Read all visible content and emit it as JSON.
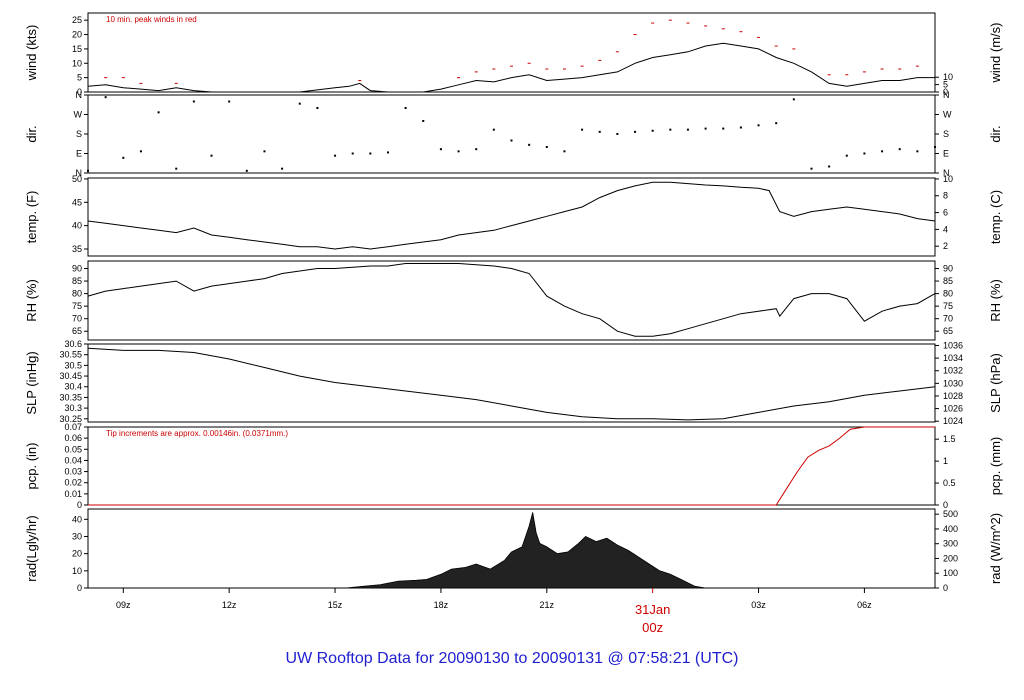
{
  "colors": {
    "axis": "#000000",
    "line": "#000000",
    "peak": "#cc0000",
    "precip": "#cc0000",
    "title": "#2020d0",
    "radiation_fill": "#222222"
  },
  "footer": {
    "title": "UW Rooftop Data for 20090130  to  20090131 @ 07:58:21  (UTC)"
  },
  "chart_data": [
    {
      "type": "line",
      "name": "wind",
      "ylabel": "wind (kts)",
      "ylabel_right": "wind (m/s)",
      "ylim": [
        0,
        27.5
      ],
      "yticks": [
        0,
        5,
        10,
        15,
        20,
        25
      ],
      "yticks_right": [
        0,
        5,
        10
      ],
      "right_factor": 1.944,
      "annotation": "10 min. peak winds in red",
      "series": [
        {
          "x": [
            8.0,
            8.5,
            9.0,
            9.5,
            10.0,
            10.5,
            11.0,
            11.5,
            12.0,
            13.0,
            14.0,
            15.0,
            15.4,
            15.7,
            16.0,
            16.5,
            17.0,
            17.5,
            18.0,
            18.5,
            19.0,
            19.5,
            20.0,
            20.5,
            21.0,
            21.5,
            22.0,
            22.5,
            23.0,
            23.5,
            24.0,
            24.5,
            25.0,
            25.5,
            26.0,
            26.5,
            27.0,
            27.5,
            28.0,
            28.5,
            29.0,
            29.5,
            30.0,
            30.5,
            31.0,
            31.5,
            32.0
          ],
          "values": [
            2,
            2.5,
            1.5,
            1,
            0.5,
            1.5,
            0.5,
            0,
            0,
            0,
            0,
            1.5,
            2,
            3,
            0.5,
            0,
            0,
            0,
            1,
            2.5,
            4,
            3.5,
            5,
            6,
            4,
            4.5,
            5,
            6,
            7,
            10,
            12,
            13,
            14,
            16,
            17,
            16,
            15,
            12,
            10,
            7,
            3,
            2,
            3,
            4,
            4,
            5,
            5
          ]
        },
        {
          "name": "10 min. peak winds",
          "x": [
            8.5,
            9.0,
            9.5,
            10.5,
            15.7,
            18.5,
            19.0,
            19.5,
            20.0,
            20.5,
            21.0,
            21.5,
            22.0,
            22.5,
            23.0,
            23.5,
            24.0,
            24.5,
            25.0,
            25.5,
            26.0,
            26.5,
            27.0,
            27.5,
            28.0,
            29.0,
            29.5,
            30.0,
            30.5,
            31.0,
            31.5
          ],
          "values": [
            5,
            5,
            3,
            3,
            4,
            5,
            7,
            8,
            9,
            10,
            8,
            8,
            9,
            11,
            14,
            20,
            24,
            25,
            24,
            23,
            22,
            21,
            19,
            16,
            15,
            6,
            6,
            7,
            8,
            8,
            9
          ]
        }
      ]
    },
    {
      "type": "scatter",
      "name": "direction",
      "ylabel": "dir.",
      "ylabel_right": "dir.",
      "yticks_labels": [
        "N",
        "E",
        "S",
        "W",
        "N"
      ],
      "ylim": [
        0,
        360
      ],
      "x": [
        8.0,
        8.5,
        9.0,
        9.5,
        10.0,
        10.5,
        11.0,
        11.5,
        12.0,
        12.5,
        13.0,
        13.5,
        14.0,
        14.5,
        15.0,
        15.5,
        16.0,
        16.5,
        17.0,
        17.5,
        18.0,
        18.5,
        19.0,
        19.5,
        20.0,
        20.5,
        21.0,
        21.5,
        22.0,
        22.5,
        23.0,
        23.5,
        24.0,
        24.5,
        25.0,
        25.5,
        26.0,
        26.5,
        27.0,
        27.5,
        28.0,
        28.5,
        29.0,
        29.5,
        30.0,
        30.5,
        31.0,
        31.5,
        32.0
      ],
      "values": [
        10,
        350,
        70,
        100,
        280,
        20,
        330,
        80,
        330,
        10,
        100,
        20,
        320,
        300,
        80,
        90,
        90,
        95,
        300,
        240,
        110,
        100,
        110,
        200,
        150,
        130,
        120,
        100,
        200,
        190,
        180,
        190,
        195,
        200,
        200,
        205,
        205,
        210,
        220,
        230,
        340,
        20,
        30,
        80,
        90,
        100,
        110,
        100,
        120
      ]
    },
    {
      "type": "line",
      "name": "temperature",
      "ylabel": "temp. (F)",
      "ylabel_right": "temp. (C)",
      "ylim": [
        33.5,
        50.2
      ],
      "yticks": [
        35,
        40,
        45,
        50
      ],
      "yticks_right": [
        2,
        4,
        6,
        8,
        10
      ],
      "right_to_left": "F",
      "x": [
        8.0,
        8.5,
        9.0,
        9.5,
        10.0,
        10.5,
        11.0,
        11.5,
        12.0,
        12.5,
        13.0,
        13.5,
        14.0,
        14.5,
        15.0,
        15.5,
        16.0,
        16.5,
        17.0,
        17.5,
        18.0,
        18.5,
        19.0,
        19.5,
        20.0,
        20.5,
        21.0,
        21.5,
        22.0,
        22.5,
        23.0,
        23.5,
        24.0,
        24.5,
        25.0,
        25.5,
        26.0,
        26.5,
        27.0,
        27.3,
        27.6,
        28.0,
        28.5,
        29.0,
        29.5,
        30.0,
        30.5,
        31.0,
        31.5,
        32.0
      ],
      "values": [
        41,
        40.5,
        40,
        39.5,
        39,
        38.5,
        39.5,
        38,
        37.5,
        37,
        36.5,
        36,
        35.5,
        35.5,
        35,
        35.5,
        35,
        35.5,
        36,
        36.5,
        37,
        38,
        38.5,
        39,
        40,
        41,
        42,
        43,
        44,
        46,
        47.5,
        48.5,
        49.3,
        49.3,
        49,
        48.7,
        48.5,
        48.2,
        48,
        47.5,
        43,
        42,
        43,
        43.5,
        44,
        43.5,
        43,
        42.5,
        41.5,
        41
      ]
    },
    {
      "type": "line",
      "name": "relative-humidity",
      "ylabel": "RH (%)",
      "ylabel_right": "RH (%)",
      "ylim": [
        61.5,
        93
      ],
      "yticks": [
        65,
        70,
        75,
        80,
        85,
        90
      ],
      "yticks_right": [
        65,
        70,
        75,
        80,
        85,
        90
      ],
      "x": [
        8.0,
        8.5,
        9.0,
        9.5,
        10.0,
        10.5,
        11.0,
        11.5,
        12.0,
        12.5,
        13.0,
        13.5,
        14.0,
        14.5,
        15.0,
        15.5,
        16.0,
        16.5,
        17.0,
        17.5,
        18.0,
        18.5,
        19.0,
        19.5,
        20.0,
        20.5,
        21.0,
        21.5,
        22.0,
        22.5,
        23.0,
        23.5,
        24.0,
        24.5,
        25.0,
        25.5,
        26.0,
        26.5,
        27.0,
        27.5,
        27.6,
        28.0,
        28.5,
        29.0,
        29.5,
        30.0,
        30.5,
        31.0,
        31.5,
        32.0
      ],
      "values": [
        79,
        81,
        82,
        83,
        84,
        85,
        81,
        83,
        84,
        85,
        86,
        88,
        89,
        90,
        90,
        90.5,
        91,
        91,
        92,
        92,
        92,
        92,
        91.5,
        91,
        90,
        88,
        79,
        75,
        72,
        70,
        65,
        63,
        63,
        64,
        66,
        68,
        70,
        72,
        73,
        74,
        71,
        78,
        80,
        80,
        78,
        69,
        73,
        75,
        76,
        80
      ]
    },
    {
      "type": "line",
      "name": "sea-level-pressure",
      "ylabel": "SLP (inHg)",
      "ylabel_right": "SLP (hPa)",
      "ylim": [
        30.235,
        30.6
      ],
      "yticks": [
        30.25,
        30.3,
        30.35,
        30.4,
        30.45,
        30.5,
        30.55,
        30.6
      ],
      "yticks_right": [
        1024,
        1026,
        1028,
        1030,
        1032,
        1034,
        1036
      ],
      "right_to_left": "hPa",
      "x": [
        8.0,
        9.0,
        10.0,
        11.0,
        12.0,
        13.0,
        14.0,
        15.0,
        16.0,
        17.0,
        18.0,
        19.0,
        20.0,
        21.0,
        22.0,
        23.0,
        24.0,
        25.0,
        26.0,
        27.0,
        28.0,
        29.0,
        30.0,
        31.0,
        32.0
      ],
      "values": [
        30.58,
        30.57,
        30.57,
        30.56,
        30.53,
        30.49,
        30.45,
        30.42,
        30.4,
        30.38,
        30.36,
        30.34,
        30.31,
        30.28,
        30.26,
        30.25,
        30.25,
        30.245,
        30.25,
        30.28,
        30.31,
        30.33,
        30.36,
        30.38,
        30.4
      ]
    },
    {
      "type": "area",
      "name": "precipitation",
      "ylabel": "pcp. (in)",
      "ylabel_right": "pcp. (mm)",
      "ylim": [
        0,
        0.07
      ],
      "yticks": [
        0,
        0.01,
        0.02,
        0.03,
        0.04,
        0.05,
        0.06,
        0.07
      ],
      "yticks_right": [
        0,
        0.5,
        1,
        1.5
      ],
      "right_factor": 25.4,
      "annotation": "Tip increments are approx. 0.00146in. (0.0371mm.)",
      "x": [
        8.0,
        27.5,
        27.8,
        28.1,
        28.4,
        28.7,
        29.0,
        29.3,
        29.6,
        30.0,
        32.0
      ],
      "values": [
        0,
        0,
        0.015,
        0.03,
        0.043,
        0.049,
        0.053,
        0.06,
        0.068,
        0.07,
        0.07
      ]
    },
    {
      "type": "area",
      "name": "solar-radiation",
      "ylabel": "rad(Lgly/hr)",
      "ylabel_right": "rad (W/m^2)",
      "ylim": [
        0,
        46
      ],
      "yticks": [
        0,
        10,
        20,
        30,
        40
      ],
      "yticks_right": [
        0,
        100,
        200,
        300,
        400,
        500
      ],
      "right_factor": 11.63,
      "x": [
        15.3,
        15.8,
        16.3,
        16.8,
        17.3,
        17.6,
        18.0,
        18.3,
        18.7,
        19.0,
        19.4,
        19.8,
        20.0,
        20.3,
        20.5,
        20.6,
        20.7,
        20.8,
        21.0,
        21.3,
        21.6,
        21.9,
        22.1,
        22.4,
        22.7,
        23.0,
        23.3,
        23.6,
        23.9,
        24.2,
        24.5,
        24.8,
        25.2,
        25.5
      ],
      "values": [
        0,
        1,
        2,
        4,
        4.5,
        5,
        8,
        11,
        12,
        14,
        11,
        16,
        21,
        24,
        36,
        44,
        32,
        26,
        24,
        20,
        21,
        26,
        30,
        27,
        29,
        25,
        22,
        18,
        14,
        10,
        8,
        5,
        1,
        0
      ]
    }
  ],
  "x_axis": {
    "xlim": [
      8,
      32
    ],
    "ticks": [
      {
        "x": 9,
        "label": "09z"
      },
      {
        "x": 12,
        "label": "12z"
      },
      {
        "x": 15,
        "label": "15z"
      },
      {
        "x": 18,
        "label": "18z"
      },
      {
        "x": 21,
        "label": "21z"
      },
      {
        "x": 27,
        "label": "03z"
      },
      {
        "x": 30,
        "label": "06z"
      }
    ],
    "date_marker": {
      "x": 24,
      "line1": "31Jan",
      "line2": "00z"
    }
  }
}
